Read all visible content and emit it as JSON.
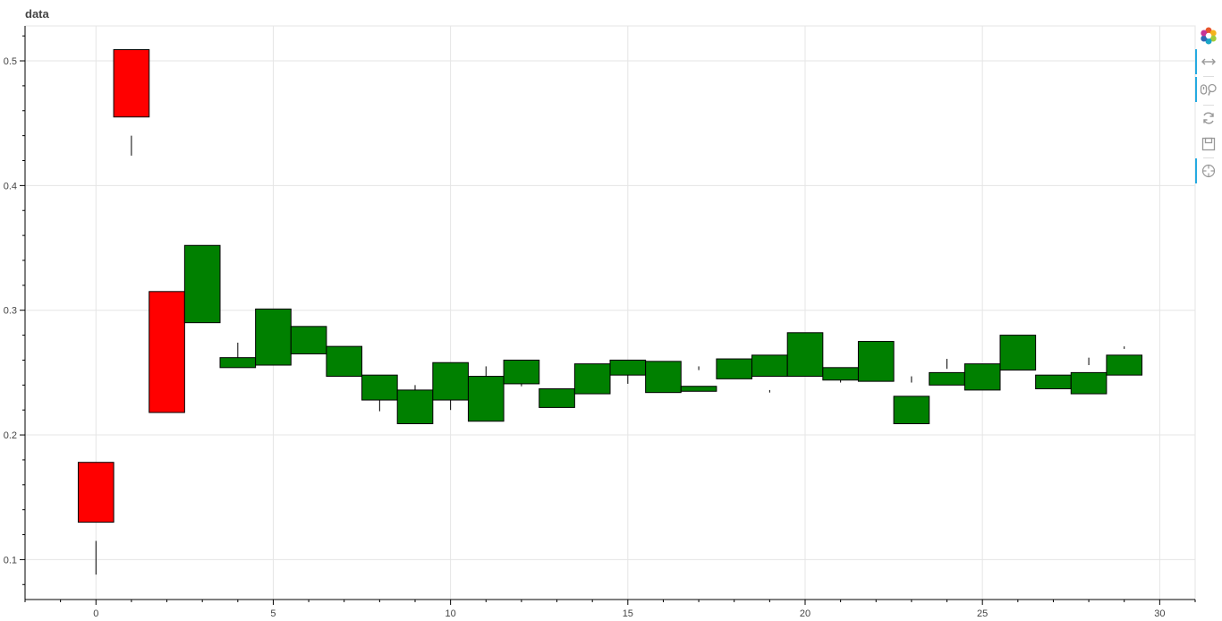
{
  "chart_data": {
    "type": "candlestick",
    "title": "data",
    "xlabel": "",
    "ylabel": "",
    "xlim": [
      -2,
      31
    ],
    "ylim": [
      0.068,
      0.528
    ],
    "xticks": [
      0,
      5,
      10,
      15,
      20,
      25,
      30
    ],
    "yticks": [
      0.1,
      0.2,
      0.3,
      0.4,
      0.5
    ],
    "grid": true,
    "candles": [
      {
        "x": 0,
        "top": 0.178,
        "bottom": 0.13,
        "wick_low": 0.088,
        "wick_high": 0.115,
        "color": "#ff0000"
      },
      {
        "x": 1,
        "top": 0.509,
        "bottom": 0.455,
        "wick_low": 0.424,
        "wick_high": 0.44,
        "color": "#ff0000"
      },
      {
        "x": 2,
        "top": 0.315,
        "bottom": 0.218,
        "color": "#ff0000"
      },
      {
        "x": 3,
        "top": 0.352,
        "bottom": 0.29,
        "color": "#008000"
      },
      {
        "x": 4,
        "top": 0.262,
        "bottom": 0.254,
        "wick_low": 0.262,
        "wick_high": 0.274,
        "color": "#008000"
      },
      {
        "x": 5,
        "top": 0.301,
        "bottom": 0.256,
        "color": "#008000"
      },
      {
        "x": 6,
        "top": 0.287,
        "bottom": 0.265,
        "color": "#008000"
      },
      {
        "x": 7,
        "top": 0.271,
        "bottom": 0.247,
        "color": "#008000"
      },
      {
        "x": 8,
        "top": 0.248,
        "bottom": 0.228,
        "wick_low": 0.219,
        "wick_high": 0.228,
        "color": "#008000"
      },
      {
        "x": 9,
        "top": 0.236,
        "bottom": 0.209,
        "wick_low": 0.236,
        "wick_high": 0.24,
        "color": "#008000"
      },
      {
        "x": 10,
        "top": 0.258,
        "bottom": 0.228,
        "wick_low": 0.22,
        "wick_high": 0.228,
        "color": "#008000"
      },
      {
        "x": 11,
        "top": 0.247,
        "bottom": 0.211,
        "wick_low": 0.247,
        "wick_high": 0.255,
        "color": "#008000"
      },
      {
        "x": 12,
        "top": 0.26,
        "bottom": 0.241,
        "wick_low": 0.239,
        "wick_high": 0.241,
        "color": "#008000"
      },
      {
        "x": 13,
        "top": 0.237,
        "bottom": 0.222,
        "color": "#008000"
      },
      {
        "x": 14,
        "top": 0.257,
        "bottom": 0.233,
        "color": "#008000"
      },
      {
        "x": 15,
        "top": 0.26,
        "bottom": 0.248,
        "wick_low": 0.241,
        "wick_high": 0.248,
        "color": "#008000"
      },
      {
        "x": 16,
        "top": 0.259,
        "bottom": 0.234,
        "color": "#008000"
      },
      {
        "x": 17,
        "top": 0.239,
        "bottom": 0.235,
        "wick_low": 0.252,
        "wick_high": 0.255,
        "color": "#008000"
      },
      {
        "x": 18,
        "top": 0.261,
        "bottom": 0.245,
        "color": "#008000"
      },
      {
        "x": 19,
        "top": 0.264,
        "bottom": 0.247,
        "wick_low": 0.234,
        "wick_high": 0.236,
        "color": "#008000"
      },
      {
        "x": 20,
        "top": 0.282,
        "bottom": 0.247,
        "color": "#008000"
      },
      {
        "x": 21,
        "top": 0.254,
        "bottom": 0.244,
        "wick_low": 0.242,
        "wick_high": 0.244,
        "color": "#008000"
      },
      {
        "x": 22,
        "top": 0.275,
        "bottom": 0.243,
        "color": "#008000"
      },
      {
        "x": 23,
        "top": 0.231,
        "bottom": 0.209,
        "wick_low": 0.242,
        "wick_high": 0.247,
        "color": "#008000"
      },
      {
        "x": 24,
        "top": 0.25,
        "bottom": 0.24,
        "wick_low": 0.253,
        "wick_high": 0.261,
        "color": "#008000"
      },
      {
        "x": 25,
        "top": 0.257,
        "bottom": 0.236,
        "color": "#008000"
      },
      {
        "x": 26,
        "top": 0.28,
        "bottom": 0.252,
        "color": "#008000"
      },
      {
        "x": 27,
        "top": 0.248,
        "bottom": 0.237,
        "color": "#008000"
      },
      {
        "x": 28,
        "top": 0.25,
        "bottom": 0.233,
        "wick_low": 0.256,
        "wick_high": 0.262,
        "color": "#008000"
      },
      {
        "x": 29,
        "top": 0.264,
        "bottom": 0.248,
        "wick_low": 0.269,
        "wick_high": 0.271,
        "color": "#008000"
      }
    ]
  },
  "toolbar": {
    "tools": [
      {
        "name": "bokeh-logo-icon",
        "active": false
      },
      {
        "name": "pan-icon",
        "active": true
      },
      {
        "name": "wheel-zoom-icon",
        "active": true
      },
      {
        "name": "reset-icon",
        "active": false
      },
      {
        "name": "save-icon",
        "active": false
      },
      {
        "name": "hover-icon",
        "active": true
      }
    ]
  }
}
